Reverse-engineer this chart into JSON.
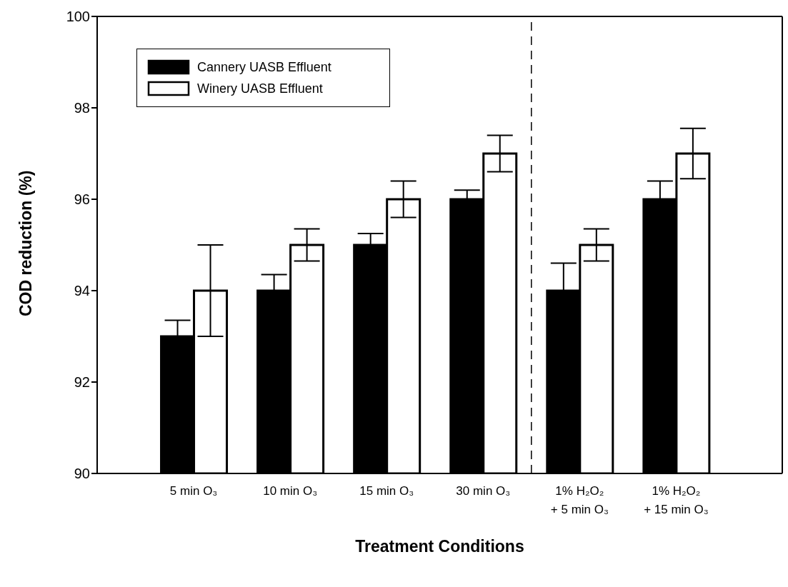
{
  "chart_data": {
    "type": "bar",
    "xlabel": "Treatment Conditions",
    "ylabel": "COD reduction (%)",
    "categories": [
      "5 min O₃",
      "10 min O₃",
      "15 min O₃",
      "30 min O₃",
      "1% H₂O₂\n+ 5 min O₃",
      "1% H₂O₂\n+ 15 min O₃"
    ],
    "series": [
      {
        "name": "Cannery UASB Effluent",
        "color": "#000000",
        "values": [
          93,
          94,
          95,
          96,
          94,
          96
        ],
        "errors": [
          0.35,
          0.35,
          0.25,
          0.2,
          0.6,
          0.4
        ]
      },
      {
        "name": "Winery UASB Effluent",
        "color": "#ffffff",
        "values": [
          94,
          95,
          96,
          97,
          95,
          97
        ],
        "errors": [
          1.0,
          0.35,
          0.4,
          0.4,
          0.35,
          0.55
        ]
      }
    ],
    "ylim": [
      90,
      100
    ],
    "yticks": [
      90,
      92,
      94,
      96,
      98,
      100
    ],
    "grid": false,
    "legend": "top left"
  }
}
